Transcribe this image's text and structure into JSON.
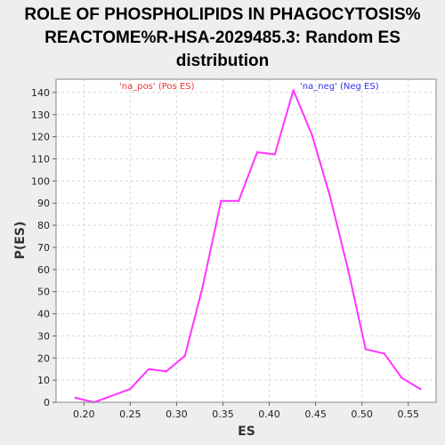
{
  "chart_data": {
    "type": "line",
    "title_lines": [
      "ROLE OF PHOSPHOLIPIDS IN PHAGOCYTOSIS%",
      "REACTOME%R-HSA-2029485.3: Random ES",
      "distribution"
    ],
    "xlabel": "ES",
    "ylabel": "P(ES)",
    "xlim": [
      0.17,
      0.58
    ],
    "ylim": [
      0,
      146
    ],
    "x_ticks": [
      0.2,
      0.25,
      0.3,
      0.35,
      0.4,
      0.45,
      0.5,
      0.55
    ],
    "x_tick_labels": [
      "0.20",
      "0.25",
      "0.30",
      "0.35",
      "0.40",
      "0.45",
      "0.50",
      "0.55"
    ],
    "y_ticks": [
      0,
      10,
      20,
      30,
      40,
      50,
      60,
      70,
      80,
      90,
      100,
      110,
      120,
      130,
      140
    ],
    "grid": true,
    "series": [
      {
        "color": "#ff33ff",
        "x": [
          0.191,
          0.211,
          0.25,
          0.27,
          0.289,
          0.309,
          0.328,
          0.348,
          0.367,
          0.387,
          0.406,
          0.426,
          0.446,
          0.465,
          0.485,
          0.504,
          0.524,
          0.543,
          0.563
        ],
        "y": [
          2,
          0,
          6,
          15,
          14,
          21,
          52,
          91,
          91,
          113,
          112,
          141,
          121,
          94,
          60,
          24,
          22,
          11,
          6
        ]
      }
    ],
    "annotations": [
      {
        "text": "'na_pos' (Pos ES)",
        "color": "#ee3333",
        "position": "top-left"
      },
      {
        "text": "'na_neg' (Neg ES)",
        "color": "#3333ee",
        "position": "top-right"
      }
    ]
  }
}
